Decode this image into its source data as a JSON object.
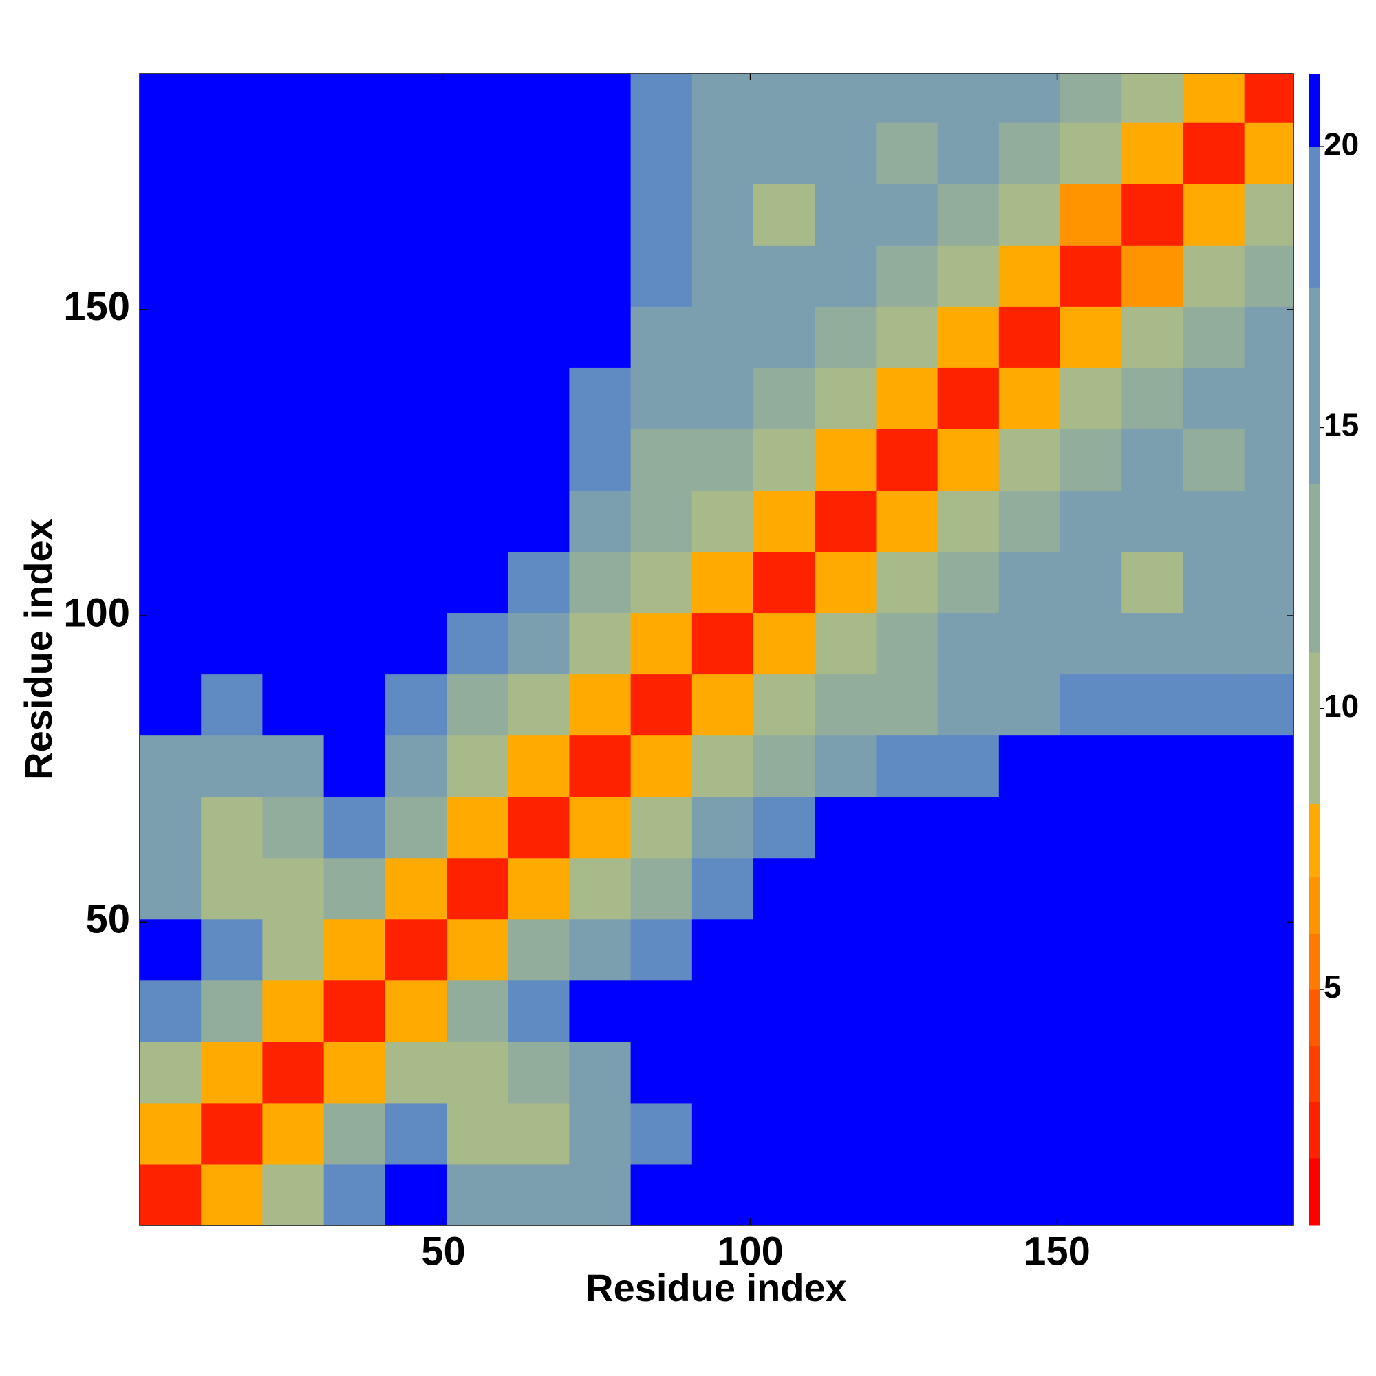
{
  "chart_data": {
    "type": "heatmap",
    "x_label": "Residue index",
    "y_label": "Residue index",
    "xlim": [
      0.5,
      188.5
    ],
    "ylim": [
      0.5,
      188.5
    ],
    "xticks": [
      50,
      100,
      150
    ],
    "yticks": [
      50,
      100,
      150
    ],
    "xbins": [
      0.5,
      10.5,
      20.5,
      30.5,
      40.5,
      50.5,
      60.5,
      70.5,
      80.5,
      90.5,
      100.5,
      110.5,
      120.5,
      130.5,
      140.5,
      150.5,
      160.5,
      170.5,
      180.5,
      188.5
    ],
    "ybins": [
      0.5,
      10.5,
      20.5,
      30.5,
      40.5,
      50.5,
      60.5,
      70.5,
      80.5,
      90.5,
      100.5,
      110.5,
      120.5,
      130.5,
      140.5,
      150.5,
      160.5,
      170.5,
      180.5,
      188.5
    ],
    "clim": [
      0.8,
      21.3
    ],
    "cticks": [
      5,
      10,
      15,
      20
    ],
    "colorscale": [
      {
        "value": 2,
        "color": "#ff0000"
      },
      {
        "value": 3,
        "color": "#ff2200"
      },
      {
        "value": 4,
        "color": "#ff4000"
      },
      {
        "value": 5,
        "color": "#ff5a00"
      },
      {
        "value": 6,
        "color": "#ff7a00"
      },
      {
        "value": 7,
        "color": "#ff9300"
      },
      {
        "value": 8.3,
        "color": "#ffaa00"
      },
      {
        "value": 11,
        "color": "#a9ba8a"
      },
      {
        "value": 14,
        "color": "#93ad9c"
      },
      {
        "value": 17.5,
        "color": "#7c9fb0"
      },
      {
        "value": 20,
        "color": "#5f8bc2"
      },
      {
        "value": 21.3,
        "color": "#0000ff"
      }
    ],
    "values": [
      [
        3,
        8,
        11,
        20,
        21,
        16,
        15,
        16,
        21,
        21,
        21,
        21,
        21,
        21,
        21,
        21,
        21,
        21,
        21
      ],
      [
        8,
        3,
        8,
        12,
        19,
        10,
        9,
        15,
        20,
        21,
        21,
        21,
        21,
        21,
        21,
        21,
        21,
        21,
        21
      ],
      [
        11,
        8,
        3,
        8,
        10,
        10,
        13,
        16,
        21,
        21,
        21,
        21,
        21,
        21,
        21,
        21,
        21,
        21,
        21
      ],
      [
        20,
        12,
        8,
        3,
        8,
        12,
        19,
        21,
        21,
        21,
        21,
        21,
        21,
        21,
        21,
        21,
        21,
        21,
        21
      ],
      [
        21,
        19,
        10,
        8,
        3,
        8,
        12,
        16,
        20,
        21,
        21,
        21,
        21,
        21,
        21,
        21,
        21,
        21,
        21
      ],
      [
        16,
        10,
        10,
        12,
        8,
        3,
        8,
        10,
        14,
        18,
        21,
        21,
        21,
        21,
        21,
        21,
        21,
        21,
        21
      ],
      [
        15,
        9,
        13,
        19,
        12,
        8,
        3,
        8,
        11,
        15,
        19,
        21,
        21,
        21,
        21,
        21,
        21,
        21,
        21
      ],
      [
        16,
        15,
        16,
        21,
        16,
        10,
        8,
        3,
        8,
        10,
        13,
        16,
        19,
        20,
        21,
        21,
        21,
        21,
        21
      ],
      [
        21,
        20,
        21,
        21,
        20,
        14,
        11,
        8,
        3,
        8,
        10,
        12,
        14,
        15,
        17,
        18,
        19,
        18,
        19
      ],
      [
        21,
        21,
        21,
        21,
        21,
        18,
        15,
        10,
        8,
        3,
        8,
        11,
        13,
        15,
        16,
        16,
        15,
        16,
        17
      ],
      [
        21,
        21,
        21,
        21,
        21,
        21,
        19,
        13,
        10,
        8,
        3,
        8,
        10,
        13,
        15,
        15,
        10,
        15,
        16
      ],
      [
        21,
        21,
        21,
        21,
        21,
        21,
        21,
        16,
        12,
        11,
        8,
        3,
        8,
        11,
        14,
        16,
        15,
        16,
        17
      ],
      [
        21,
        21,
        21,
        21,
        21,
        21,
        21,
        19,
        14,
        13,
        10,
        8,
        3,
        8,
        11,
        14,
        15,
        14,
        17
      ],
      [
        21,
        21,
        21,
        21,
        21,
        21,
        21,
        20,
        15,
        15,
        13,
        11,
        8,
        3,
        8,
        11,
        14,
        15,
        17
      ],
      [
        21,
        21,
        21,
        21,
        21,
        21,
        21,
        21,
        17,
        16,
        15,
        14,
        11,
        8,
        3,
        8,
        11,
        14,
        16
      ],
      [
        21,
        21,
        21,
        21,
        21,
        21,
        21,
        21,
        18,
        16,
        15,
        16,
        14,
        11,
        8,
        3,
        7,
        10,
        14
      ],
      [
        21,
        21,
        21,
        21,
        21,
        21,
        21,
        21,
        19,
        15,
        10,
        15,
        15,
        14,
        11,
        7,
        3,
        8,
        11
      ],
      [
        21,
        21,
        21,
        21,
        21,
        21,
        21,
        21,
        18,
        16,
        15,
        16,
        14,
        15,
        14,
        10,
        8,
        3,
        8
      ],
      [
        21,
        21,
        21,
        21,
        21,
        21,
        21,
        21,
        19,
        17,
        16,
        17,
        17,
        17,
        16,
        14,
        11,
        8,
        3
      ]
    ]
  }
}
